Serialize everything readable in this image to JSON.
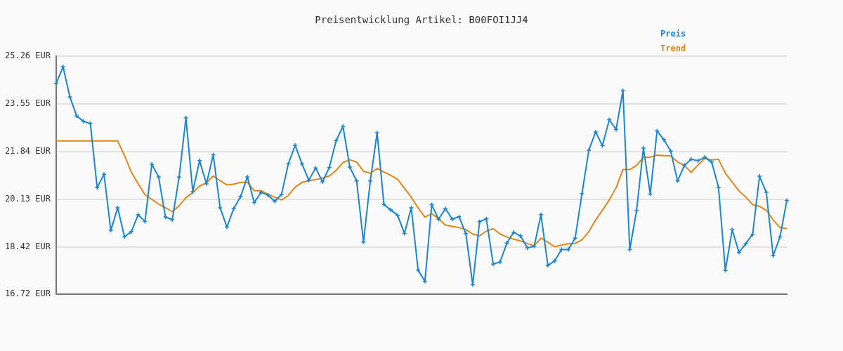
{
  "chart_data": {
    "type": "line",
    "title": "Preisentwicklung Artikel: B00FOI1JJ4",
    "categories": [
      null,
      null,
      null,
      null,
      null,
      null,
      null,
      null,
      null,
      null,
      null,
      null,
      null,
      null,
      null,
      null,
      null,
      null,
      null,
      null,
      null,
      null,
      null,
      null,
      null,
      null,
      null,
      null,
      null,
      null,
      null,
      null,
      null,
      null,
      null,
      null,
      null,
      null,
      null,
      null,
      null,
      null,
      null,
      null,
      null,
      null,
      null,
      null,
      null,
      null,
      null,
      null,
      null,
      null,
      null,
      null,
      null,
      null,
      null,
      null,
      null,
      null,
      null,
      null,
      null,
      null,
      null,
      null,
      null,
      null,
      null,
      null,
      null,
      null,
      null,
      null,
      null,
      null,
      null,
      null,
      null,
      null,
      null,
      null,
      null,
      null,
      null,
      null,
      null,
      null,
      null,
      null,
      null,
      null,
      null,
      null,
      null,
      null,
      null,
      null,
      null,
      null,
      null,
      null,
      null,
      null,
      null,
      null
    ],
    "series": [
      {
        "name": "Preis",
        "color": "#1a85d0",
        "marker": "cross",
        "values": [
          24.28,
          24.88,
          23.8,
          23.11,
          22.92,
          22.84,
          20.54,
          21.02,
          19.01,
          19.82,
          18.78,
          18.96,
          19.57,
          19.33,
          21.38,
          20.93,
          19.49,
          19.39,
          20.92,
          23.04,
          20.4,
          21.51,
          20.68,
          21.72,
          19.82,
          19.13,
          19.79,
          20.22,
          20.93,
          20.01,
          20.37,
          20.28,
          20.05,
          20.3,
          21.4,
          22.06,
          21.39,
          20.81,
          21.25,
          20.75,
          21.27,
          22.23,
          22.74,
          21.28,
          20.78,
          18.59,
          20.78,
          22.51,
          19.94,
          19.74,
          19.55,
          18.9,
          19.82,
          17.58,
          17.18,
          19.93,
          19.41,
          19.79,
          19.41,
          19.5,
          18.89,
          17.06,
          19.32,
          19.42,
          17.8,
          17.87,
          18.55,
          18.94,
          18.81,
          18.38,
          18.44,
          19.57,
          17.75,
          17.91,
          18.32,
          18.32,
          18.73,
          20.32,
          21.88,
          22.54,
          22.05,
          22.98,
          22.63,
          24.02,
          18.32,
          19.72,
          21.96,
          20.31,
          22.58,
          22.26,
          21.85,
          20.78,
          21.34,
          21.56,
          21.51,
          21.63,
          21.46,
          20.55,
          17.57,
          19.03,
          18.22,
          18.53,
          18.87,
          20.95,
          20.37,
          18.1,
          18.77,
          20.08
        ]
      },
      {
        "name": "Trend",
        "color": "#e0861a",
        "marker": "none",
        "values": [
          22.22,
          22.22,
          22.22,
          22.22,
          22.22,
          22.22,
          22.22,
          22.22,
          22.22,
          22.22,
          21.69,
          21.1,
          20.68,
          20.29,
          20.12,
          19.95,
          19.82,
          19.68,
          19.89,
          20.18,
          20.37,
          20.6,
          20.71,
          20.96,
          20.79,
          20.64,
          20.67,
          20.73,
          20.73,
          20.43,
          20.43,
          20.3,
          20.2,
          20.1,
          20.26,
          20.56,
          20.73,
          20.79,
          20.83,
          20.89,
          20.96,
          21.16,
          21.44,
          21.54,
          21.46,
          21.13,
          21.06,
          21.23,
          21.1,
          20.98,
          20.84,
          20.52,
          20.2,
          19.82,
          19.48,
          19.61,
          19.42,
          19.2,
          19.15,
          19.11,
          19.03,
          18.88,
          18.81,
          18.98,
          19.07,
          18.88,
          18.77,
          18.69,
          18.63,
          18.53,
          18.46,
          18.73,
          18.58,
          18.42,
          18.48,
          18.53,
          18.54,
          18.67,
          18.96,
          19.38,
          19.73,
          20.1,
          20.54,
          21.19,
          21.19,
          21.34,
          21.63,
          21.63,
          21.71,
          21.69,
          21.68,
          21.46,
          21.34,
          21.09,
          21.36,
          21.59,
          21.54,
          21.56,
          21.06,
          20.74,
          20.42,
          20.2,
          19.93,
          19.87,
          19.73,
          19.38,
          19.11,
          19.07
        ]
      }
    ],
    "ylim": [
      16.72,
      25.26
    ],
    "yticks": [
      {
        "value": 16.72,
        "label": "16.72 EUR"
      },
      {
        "value": 18.42,
        "label": "18.42 EUR"
      },
      {
        "value": 20.13,
        "label": "20.13 EUR"
      },
      {
        "value": 21.84,
        "label": "21.84 EUR"
      },
      {
        "value": 23.55,
        "label": "23.55 EUR"
      },
      {
        "value": 25.26,
        "label": "25.26 EUR"
      }
    ],
    "grid": "y",
    "legend": "top right",
    "line_style": "solid",
    "tick_labels": "y"
  }
}
